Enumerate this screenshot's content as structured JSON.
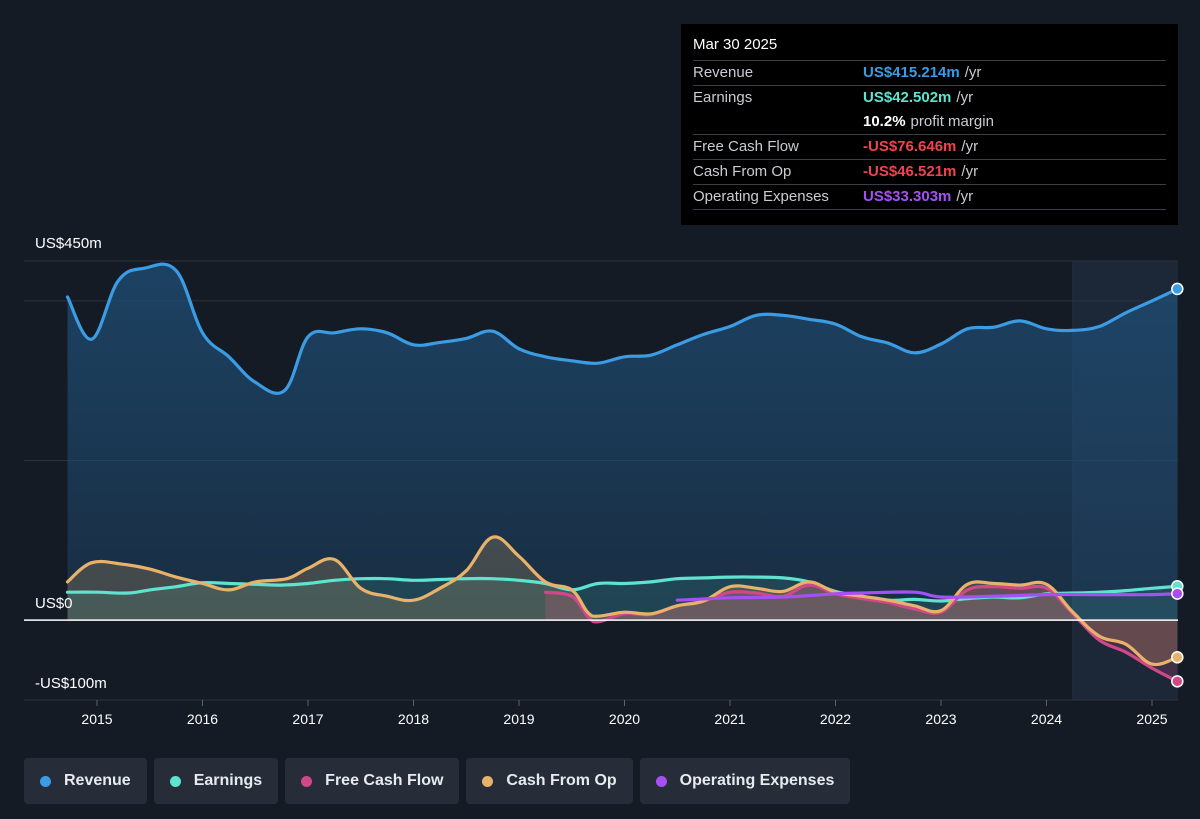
{
  "tooltip": {
    "date": "Mar 30 2025",
    "rows": [
      {
        "label": "Revenue",
        "value": "US$415.214m",
        "unit": "/yr",
        "color": "#3b9ce4"
      },
      {
        "label": "Earnings",
        "value": "US$42.502m",
        "unit": "/yr",
        "color": "#5ee3cf"
      },
      {
        "label": "",
        "value": "10.2%",
        "unit": "profit margin",
        "color": "#ffffff"
      },
      {
        "label": "Free Cash Flow",
        "value": "-US$76.646m",
        "unit": "/yr",
        "color": "#f0434e"
      },
      {
        "label": "Cash From Op",
        "value": "-US$46.521m",
        "unit": "/yr",
        "color": "#f0434e"
      },
      {
        "label": "Operating Expenses",
        "value": "US$33.303m",
        "unit": "/yr",
        "color": "#a64ff5"
      }
    ]
  },
  "legend": [
    {
      "label": "Revenue",
      "color": "#3b9ce4"
    },
    {
      "label": "Earnings",
      "color": "#5ee3cf"
    },
    {
      "label": "Free Cash Flow",
      "color": "#d04889"
    },
    {
      "label": "Cash From Op",
      "color": "#e9b26a"
    },
    {
      "label": "Operating Expenses",
      "color": "#a64ff5"
    }
  ],
  "chart_data": {
    "type": "line",
    "y_top_label": "US$450m",
    "y_zero_label": "US$0",
    "y_bottom_label": "-US$100m",
    "ylim": [
      -100,
      450
    ],
    "xlim": [
      2014.7,
      2025.25
    ],
    "x_ticks": [
      "2015",
      "2016",
      "2017",
      "2018",
      "2019",
      "2020",
      "2021",
      "2022",
      "2023",
      "2024",
      "2025"
    ],
    "forecast_start": 2024.25,
    "series": [
      {
        "name": "Revenue",
        "color": "#3b9ce4",
        "fill": true,
        "points": [
          [
            2014.72,
            405
          ],
          [
            2014.95,
            352
          ],
          [
            2015.2,
            425
          ],
          [
            2015.45,
            441
          ],
          [
            2015.75,
            438
          ],
          [
            2016.0,
            360
          ],
          [
            2016.25,
            330
          ],
          [
            2016.5,
            298
          ],
          [
            2016.78,
            288
          ],
          [
            2017.0,
            355
          ],
          [
            2017.25,
            360
          ],
          [
            2017.5,
            365
          ],
          [
            2017.75,
            360
          ],
          [
            2018.0,
            345
          ],
          [
            2018.25,
            348
          ],
          [
            2018.5,
            353
          ],
          [
            2018.75,
            362
          ],
          [
            2019.0,
            340
          ],
          [
            2019.25,
            330
          ],
          [
            2019.5,
            325
          ],
          [
            2019.75,
            322
          ],
          [
            2020.0,
            330
          ],
          [
            2020.25,
            332
          ],
          [
            2020.5,
            345
          ],
          [
            2020.75,
            358
          ],
          [
            2021.0,
            368
          ],
          [
            2021.25,
            382
          ],
          [
            2021.5,
            382
          ],
          [
            2021.75,
            377
          ],
          [
            2022.0,
            371
          ],
          [
            2022.25,
            355
          ],
          [
            2022.5,
            347
          ],
          [
            2022.75,
            335
          ],
          [
            2023.0,
            346
          ],
          [
            2023.25,
            365
          ],
          [
            2023.5,
            367
          ],
          [
            2023.75,
            375
          ],
          [
            2024.0,
            365
          ],
          [
            2024.25,
            363
          ],
          [
            2024.5,
            368
          ],
          [
            2024.75,
            385
          ],
          [
            2025.0,
            400
          ],
          [
            2025.24,
            415
          ]
        ]
      },
      {
        "name": "Earnings",
        "color": "#5ee3cf",
        "fill": true,
        "points": [
          [
            2014.72,
            35
          ],
          [
            2015.0,
            35
          ],
          [
            2015.3,
            34
          ],
          [
            2015.5,
            38
          ],
          [
            2015.75,
            42
          ],
          [
            2016.0,
            47
          ],
          [
            2016.25,
            46
          ],
          [
            2016.5,
            45
          ],
          [
            2016.75,
            44
          ],
          [
            2017.0,
            46
          ],
          [
            2017.25,
            50
          ],
          [
            2017.5,
            52
          ],
          [
            2017.75,
            52
          ],
          [
            2018.0,
            50
          ],
          [
            2018.25,
            51
          ],
          [
            2018.5,
            52
          ],
          [
            2018.75,
            52
          ],
          [
            2019.0,
            50
          ],
          [
            2019.25,
            46
          ],
          [
            2019.5,
            38
          ],
          [
            2019.75,
            46
          ],
          [
            2020.0,
            46
          ],
          [
            2020.25,
            48
          ],
          [
            2020.5,
            52
          ],
          [
            2020.75,
            53
          ],
          [
            2021.0,
            54
          ],
          [
            2021.25,
            54
          ],
          [
            2021.5,
            53
          ],
          [
            2021.75,
            48
          ],
          [
            2022.0,
            36
          ],
          [
            2022.25,
            30
          ],
          [
            2022.5,
            25
          ],
          [
            2022.75,
            26
          ],
          [
            2023.0,
            24
          ],
          [
            2023.25,
            27
          ],
          [
            2023.5,
            29
          ],
          [
            2023.75,
            28
          ],
          [
            2024.0,
            33
          ],
          [
            2024.25,
            34
          ],
          [
            2024.5,
            35
          ],
          [
            2024.75,
            37
          ],
          [
            2025.0,
            40
          ],
          [
            2025.24,
            42.5
          ]
        ]
      },
      {
        "name": "Free Cash Flow",
        "color": "#d04889",
        "fill": true,
        "points": [
          [
            2019.25,
            35
          ],
          [
            2019.5,
            30
          ],
          [
            2019.65,
            5
          ],
          [
            2019.75,
            -2
          ],
          [
            2020.0,
            8
          ],
          [
            2020.25,
            7
          ],
          [
            2020.5,
            18
          ],
          [
            2020.75,
            24
          ],
          [
            2021.0,
            35
          ],
          [
            2021.25,
            34
          ],
          [
            2021.5,
            30
          ],
          [
            2021.75,
            44
          ],
          [
            2022.0,
            33
          ],
          [
            2022.25,
            27
          ],
          [
            2022.5,
            22
          ],
          [
            2022.75,
            14
          ],
          [
            2023.0,
            10
          ],
          [
            2023.25,
            38
          ],
          [
            2023.5,
            42
          ],
          [
            2023.75,
            40
          ],
          [
            2024.0,
            40
          ],
          [
            2024.25,
            8
          ],
          [
            2024.5,
            -25
          ],
          [
            2024.75,
            -40
          ],
          [
            2025.0,
            -60
          ],
          [
            2025.24,
            -76.6
          ]
        ]
      },
      {
        "name": "Cash From Op",
        "color": "#e9b26a",
        "fill": true,
        "points": [
          [
            2014.72,
            48
          ],
          [
            2014.95,
            72
          ],
          [
            2015.25,
            70
          ],
          [
            2015.5,
            64
          ],
          [
            2015.75,
            54
          ],
          [
            2016.0,
            46
          ],
          [
            2016.25,
            38
          ],
          [
            2016.5,
            48
          ],
          [
            2016.8,
            52
          ],
          [
            2017.0,
            65
          ],
          [
            2017.25,
            76
          ],
          [
            2017.5,
            40
          ],
          [
            2017.75,
            30
          ],
          [
            2018.0,
            25
          ],
          [
            2018.25,
            40
          ],
          [
            2018.5,
            62
          ],
          [
            2018.75,
            104
          ],
          [
            2019.0,
            80
          ],
          [
            2019.25,
            48
          ],
          [
            2019.5,
            38
          ],
          [
            2019.65,
            10
          ],
          [
            2019.75,
            5
          ],
          [
            2020.0,
            10
          ],
          [
            2020.25,
            8
          ],
          [
            2020.5,
            18
          ],
          [
            2020.75,
            24
          ],
          [
            2021.0,
            42
          ],
          [
            2021.25,
            40
          ],
          [
            2021.5,
            36
          ],
          [
            2021.75,
            48
          ],
          [
            2022.0,
            35
          ],
          [
            2022.25,
            30
          ],
          [
            2022.5,
            25
          ],
          [
            2022.75,
            18
          ],
          [
            2023.0,
            12
          ],
          [
            2023.25,
            45
          ],
          [
            2023.5,
            46
          ],
          [
            2023.75,
            44
          ],
          [
            2024.0,
            45
          ],
          [
            2024.25,
            10
          ],
          [
            2024.5,
            -20
          ],
          [
            2024.75,
            -30
          ],
          [
            2025.0,
            -55
          ],
          [
            2025.24,
            -46.5
          ]
        ]
      },
      {
        "name": "Operating Expenses",
        "color": "#a64ff5",
        "fill": false,
        "points": [
          [
            2020.5,
            25
          ],
          [
            2021.0,
            28
          ],
          [
            2021.5,
            29
          ],
          [
            2022.0,
            33
          ],
          [
            2022.25,
            34
          ],
          [
            2022.75,
            35
          ],
          [
            2023.0,
            29
          ],
          [
            2023.5,
            30
          ],
          [
            2024.0,
            32
          ],
          [
            2024.5,
            32
          ],
          [
            2025.0,
            32
          ],
          [
            2025.24,
            33.3
          ]
        ]
      }
    ]
  }
}
